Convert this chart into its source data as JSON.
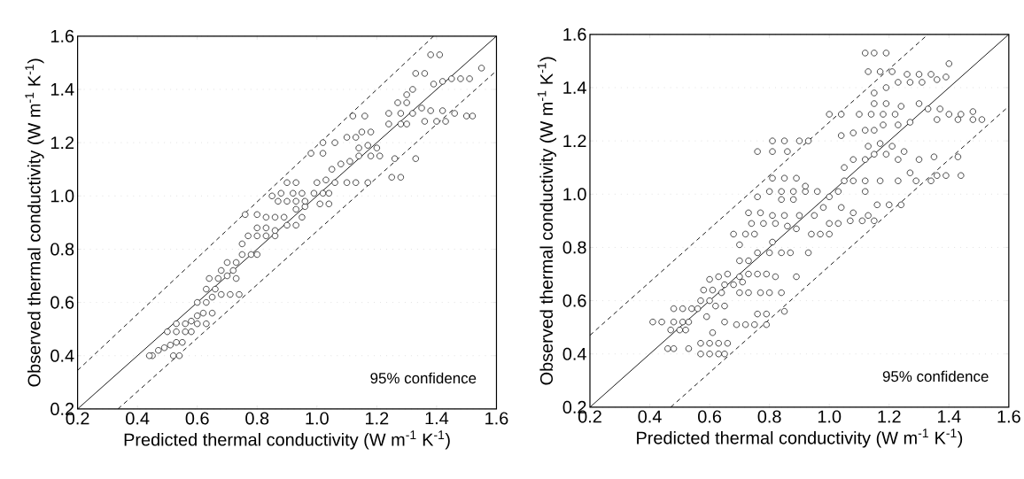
{
  "chart_data": [
    {
      "type": "scatter",
      "xlabel": "Predicted thermal conductivity (W m$^{-1}$ K$^{-1}$)",
      "ylabel": "Observed thermal conductivity (W m$^{-1}$ K$^{-1}$)",
      "xlim": [
        0.2,
        1.6
      ],
      "ylim": [
        0.2,
        1.6
      ],
      "xticks": [
        0.2,
        0.4,
        0.6,
        0.8,
        {
          "value": 1.0,
          "label": "1.0"
        },
        1.2,
        1.4,
        1.6
      ],
      "yticks": [
        0.2,
        0.4,
        0.6,
        0.8,
        {
          "value": 1.0,
          "label": "1.0"
        },
        1.2,
        1.4,
        1.6
      ],
      "grid": "y",
      "marker": "circle",
      "annotations": [
        "95% confidence"
      ],
      "series": [
        {
          "color": "#000000",
          "x": [
            0.45,
            0.44,
            0.52,
            0.54,
            0.47,
            0.49,
            0.51,
            0.53,
            0.55,
            0.5,
            0.53,
            0.56,
            0.58,
            0.53,
            0.56,
            0.58,
            0.6,
            0.63,
            0.6,
            0.62,
            0.65,
            0.6,
            0.63,
            0.65,
            0.63,
            0.66,
            0.68,
            0.71,
            0.74,
            0.64,
            0.67,
            0.7,
            0.73,
            0.68,
            0.72,
            0.7,
            0.73,
            0.75,
            0.78,
            0.8,
            0.75,
            0.77,
            0.8,
            0.83,
            0.86,
            0.8,
            0.83,
            0.86,
            0.76,
            0.8,
            0.83,
            0.86,
            0.89,
            0.9,
            0.93,
            0.95,
            0.93,
            0.96,
            0.87,
            0.9,
            0.93,
            0.96,
            0.85,
            0.88,
            0.92,
            0.95,
            0.9,
            0.93,
            0.99,
            1.02,
            1.04,
            1.01,
            1.04,
            1.0,
            1.03,
            1.06,
            1.1,
            1.13,
            1.17,
            1.05,
            1.08,
            1.11,
            1.14,
            1.18,
            1.21,
            1.14,
            1.17,
            1.2,
            1.1,
            1.13,
            0.98,
            1.02,
            1.02,
            1.06,
            1.15,
            1.18,
            1.12,
            1.16,
            1.25,
            1.28,
            1.26,
            1.33,
            1.24,
            1.28,
            1.3,
            1.24,
            1.28,
            1.27,
            1.3,
            1.3,
            1.32,
            1.32,
            1.35,
            1.38,
            1.42,
            1.36,
            1.4,
            1.43,
            1.46,
            1.5,
            1.52,
            1.33,
            1.36,
            1.39,
            1.42,
            1.45,
            1.48,
            1.51,
            1.38,
            1.41,
            1.55
          ],
          "values": [
            0.4,
            0.4,
            0.4,
            0.4,
            0.42,
            0.43,
            0.44,
            0.45,
            0.45,
            0.49,
            0.49,
            0.49,
            0.49,
            0.52,
            0.52,
            0.53,
            0.52,
            0.52,
            0.55,
            0.56,
            0.56,
            0.6,
            0.6,
            0.62,
            0.65,
            0.65,
            0.63,
            0.63,
            0.63,
            0.69,
            0.69,
            0.7,
            0.69,
            0.72,
            0.72,
            0.75,
            0.75,
            0.78,
            0.78,
            0.78,
            0.82,
            0.85,
            0.85,
            0.85,
            0.85,
            0.88,
            0.88,
            0.87,
            0.93,
            0.93,
            0.92,
            0.92,
            0.92,
            0.89,
            0.89,
            0.92,
            0.95,
            0.96,
            0.98,
            0.98,
            0.98,
            0.98,
            1.0,
            1.01,
            1.01,
            1.01,
            1.05,
            1.05,
            1.01,
            1.01,
            1.01,
            0.97,
            0.97,
            1.05,
            1.06,
            1.05,
            1.05,
            1.05,
            1.05,
            1.1,
            1.12,
            1.13,
            1.15,
            1.15,
            1.15,
            1.18,
            1.19,
            1.18,
            1.22,
            1.22,
            1.16,
            1.16,
            1.2,
            1.2,
            1.24,
            1.24,
            1.3,
            1.3,
            1.07,
            1.07,
            1.14,
            1.14,
            1.27,
            1.27,
            1.27,
            1.31,
            1.31,
            1.35,
            1.35,
            1.38,
            1.4,
            1.31,
            1.33,
            1.32,
            1.32,
            1.28,
            1.28,
            1.28,
            1.31,
            1.3,
            1.3,
            1.46,
            1.46,
            1.42,
            1.43,
            1.44,
            1.44,
            1.44,
            1.53,
            1.53,
            1.48
          ]
        },
        {
          "type": "line",
          "color": "#000000",
          "marker": "none",
          "line_style": "solid",
          "x": [
            0.2,
            1.6
          ],
          "values": [
            0.2,
            1.6
          ]
        },
        {
          "type": "line",
          "color": "#000000",
          "marker": "none",
          "line_style": "dashed",
          "x": [
            0.2,
            1.39
          ],
          "values": [
            0.345,
            1.6
          ]
        },
        {
          "type": "line",
          "color": "#000000",
          "marker": "none",
          "line_style": "dashed",
          "x": [
            0.335,
            1.6
          ],
          "values": [
            0.2,
            1.47
          ]
        }
      ]
    },
    {
      "type": "scatter",
      "xlabel": "Predicted thermal conductivity (W m$^{-1}$ K$^{-1}$)",
      "ylabel": "Observed thermal conductivity (W m$^{-1}$ K$^{-1}$)",
      "xlim": [
        0.2,
        1.6
      ],
      "ylim": [
        0.2,
        1.6
      ],
      "xticks": [
        0.2,
        0.4,
        0.6,
        0.8,
        {
          "value": 1.0,
          "label": "1.0"
        },
        1.2,
        1.4,
        1.6
      ],
      "yticks": [
        0.2,
        0.4,
        0.6,
        0.8,
        {
          "value": 1.0,
          "label": "1.0"
        },
        1.2,
        1.4,
        1.6
      ],
      "grid": "y",
      "marker": "circle",
      "annotations": [
        "95% confidence"
      ],
      "series": [
        {
          "color": "#000000",
          "x": [
            0.41,
            0.44,
            0.46,
            0.48,
            0.53,
            0.47,
            0.5,
            0.52,
            0.48,
            0.51,
            0.53,
            0.48,
            0.51,
            0.54,
            0.56,
            0.57,
            0.6,
            0.63,
            0.65,
            0.57,
            0.6,
            0.63,
            0.66,
            0.61,
            0.59,
            0.57,
            0.6,
            0.62,
            0.58,
            0.61,
            0.64,
            0.6,
            0.63,
            0.66,
            0.65,
            0.68,
            0.71,
            0.65,
            0.65,
            0.69,
            0.72,
            0.75,
            0.79,
            0.7,
            0.73,
            0.77,
            0.8,
            0.84,
            0.7,
            0.73,
            0.76,
            0.79,
            0.82,
            0.89,
            0.7,
            0.73,
            0.76,
            0.8,
            0.84,
            0.87,
            0.93,
            0.76,
            0.79,
            0.85,
            0.68,
            0.72,
            0.75,
            0.7,
            0.81,
            0.73,
            0.77,
            0.81,
            0.85,
            0.74,
            0.78,
            0.82,
            0.86,
            0.89,
            0.9,
            0.76,
            0.8,
            0.84,
            0.88,
            0.92,
            0.96,
            0.84,
            0.88,
            0.81,
            0.85,
            0.89,
            0.92,
            0.94,
            0.97,
            1.0,
            0.95,
            0.98,
            1.0,
            1.03,
            1.07,
            1.11,
            1.15,
            1.04,
            1.08,
            1.13,
            1.0,
            1.03,
            1.05,
            1.08,
            1.12,
            1.17,
            1.12,
            1.16,
            1.2,
            1.24,
            1.23,
            1.29,
            1.34,
            1.05,
            1.08,
            1.12,
            1.15,
            1.19,
            1.23,
            1.3,
            1.35,
            1.43,
            1.27,
            1.36,
            1.39,
            1.44,
            1.13,
            1.17,
            1.21,
            1.25,
            1.04,
            1.08,
            1.12,
            1.15,
            1.18,
            1.23,
            1.27,
            1.1,
            1.14,
            1.18,
            1.22,
            1.0,
            1.04,
            1.15,
            1.19,
            1.24,
            1.3,
            1.33,
            1.37,
            1.4,
            1.44,
            1.48,
            1.36,
            1.43,
            1.48,
            1.51,
            1.15,
            1.19,
            1.23,
            1.27,
            1.31,
            1.36,
            1.39,
            1.13,
            1.17,
            1.21,
            1.26,
            1.3,
            1.34,
            1.4,
            1.12,
            1.15,
            1.19,
            0.76,
            0.81,
            0.86,
            0.81,
            0.85,
            0.9,
            0.93
          ],
          "values": [
            0.52,
            0.52,
            0.42,
            0.42,
            0.42,
            0.49,
            0.49,
            0.49,
            0.52,
            0.52,
            0.52,
            0.57,
            0.57,
            0.57,
            0.57,
            0.4,
            0.4,
            0.4,
            0.4,
            0.44,
            0.44,
            0.44,
            0.44,
            0.48,
            0.54,
            0.6,
            0.6,
            0.58,
            0.64,
            0.64,
            0.63,
            0.68,
            0.69,
            0.7,
            0.66,
            0.66,
            0.67,
            0.58,
            0.52,
            0.51,
            0.51,
            0.51,
            0.51,
            0.63,
            0.63,
            0.63,
            0.63,
            0.63,
            0.69,
            0.7,
            0.7,
            0.7,
            0.69,
            0.69,
            0.75,
            0.75,
            0.78,
            0.78,
            0.78,
            0.78,
            0.78,
            0.55,
            0.55,
            0.56,
            0.85,
            0.85,
            0.85,
            0.81,
            0.82,
            0.93,
            0.93,
            0.92,
            0.92,
            0.89,
            0.89,
            0.89,
            0.88,
            0.87,
            0.92,
            0.99,
            1.01,
            1.01,
            1.01,
            1.01,
            1.01,
            0.98,
            0.98,
            1.06,
            1.06,
            1.06,
            1.03,
            0.85,
            0.85,
            0.85,
            0.92,
            0.95,
            0.89,
            0.89,
            0.9,
            0.9,
            0.9,
            0.95,
            0.93,
            0.92,
            0.99,
            1.01,
            1.05,
            1.05,
            1.05,
            1.05,
            1.01,
            0.96,
            0.96,
            0.96,
            1.05,
            1.05,
            1.05,
            1.1,
            1.13,
            1.13,
            1.15,
            1.15,
            1.13,
            1.13,
            1.14,
            1.14,
            1.08,
            1.07,
            1.07,
            1.07,
            1.18,
            1.19,
            1.18,
            1.16,
            1.22,
            1.23,
            1.24,
            1.24,
            1.26,
            1.26,
            1.27,
            1.3,
            1.3,
            1.3,
            1.3,
            1.3,
            1.3,
            1.34,
            1.34,
            1.33,
            1.34,
            1.32,
            1.32,
            1.3,
            1.3,
            1.31,
            1.28,
            1.28,
            1.28,
            1.28,
            1.38,
            1.4,
            1.42,
            1.42,
            1.42,
            1.43,
            1.44,
            1.46,
            1.46,
            1.46,
            1.45,
            1.45,
            1.45,
            1.49,
            1.53,
            1.53,
            1.53,
            1.16,
            1.16,
            1.16,
            1.2,
            1.2,
            1.2,
            1.2
          ]
        },
        {
          "type": "line",
          "color": "#000000",
          "marker": "none",
          "line_style": "solid",
          "x": [
            0.2,
            1.6
          ],
          "values": [
            0.2,
            1.6
          ]
        },
        {
          "type": "line",
          "color": "#000000",
          "marker": "none",
          "line_style": "dashed",
          "x": [
            0.2,
            1.33
          ],
          "values": [
            0.47,
            1.6
          ]
        },
        {
          "type": "line",
          "color": "#000000",
          "marker": "none",
          "line_style": "dashed",
          "x": [
            0.47,
            1.6
          ],
          "values": [
            0.2,
            1.33
          ]
        }
      ]
    }
  ]
}
